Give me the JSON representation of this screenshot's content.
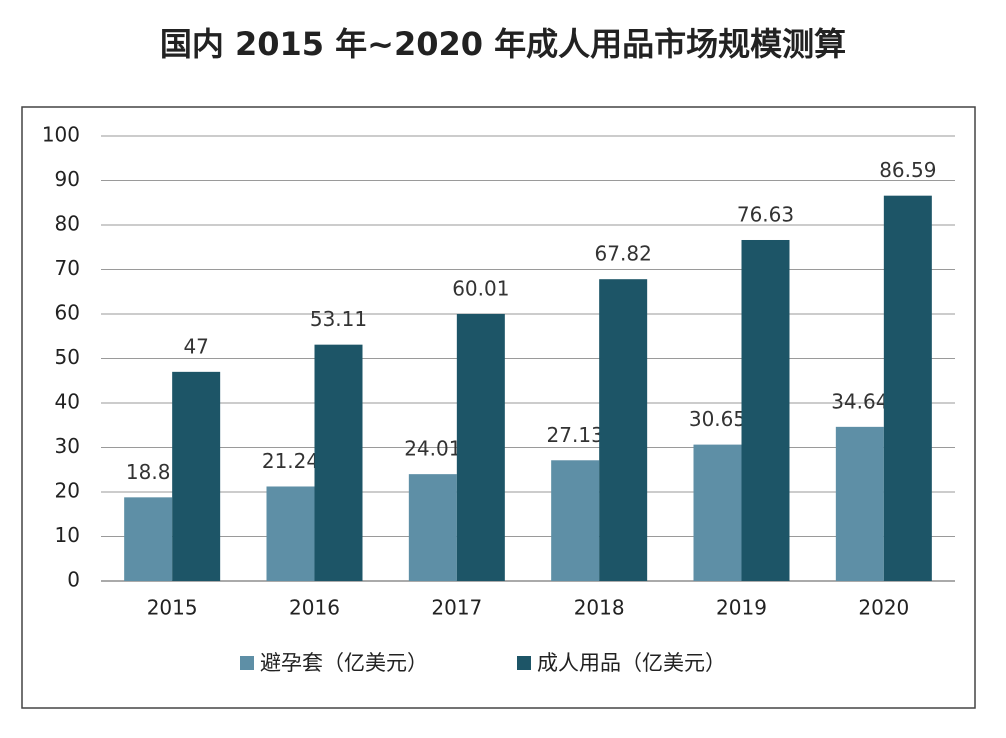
{
  "chart_data": {
    "type": "bar",
    "title": "国内 2015 年~2020 年成人用品市场规模测算",
    "categories": [
      "2015",
      "2016",
      "2017",
      "2018",
      "2019",
      "2020"
    ],
    "series": [
      {
        "name": "避孕套（亿美元）",
        "color": "#5e8fa6",
        "values": [
          18.8,
          21.24,
          24.01,
          27.13,
          30.65,
          34.64
        ]
      },
      {
        "name": "成人用品（亿美元）",
        "color": "#1d5567",
        "values": [
          47,
          53.11,
          60.01,
          67.82,
          76.63,
          86.59
        ]
      }
    ],
    "ylim": [
      0,
      100
    ],
    "yticks": [
      0,
      10,
      20,
      30,
      40,
      50,
      60,
      70,
      80,
      90,
      100
    ],
    "grid": true,
    "legend": "bottom"
  }
}
